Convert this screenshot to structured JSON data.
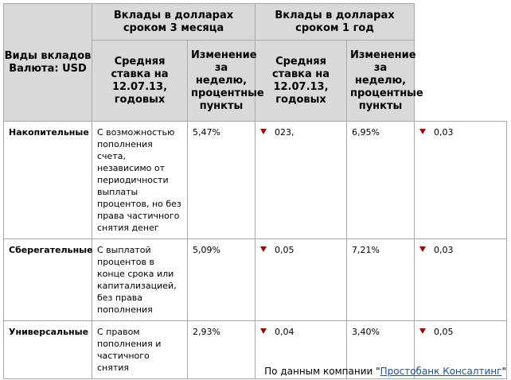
{
  "table": {
    "header": {
      "row_label": [
        "Виды вкладов",
        "Валюта: USD"
      ],
      "groups": [
        "Вклады в долларах сроком 3 месяца",
        "Вклады в долларах сроком 1 год"
      ],
      "subcolumns": [
        [
          "Средняя ставка на 12.07.13, годовых",
          "Изменение за неделю, процентные пункты"
        ],
        [
          "Средняя ставка на 12.07.13, годовых",
          "Изменение за неделю, процентные пункты"
        ]
      ]
    },
    "rows": [
      [
        "Накопительные",
        "С возможностью пополнения счета, независимо от периодичности выплаты процентов, но без права частичного снятия денег",
        "5,47%",
        "023,",
        "6,95%",
        "0,03"
      ],
      [
        "Сберегательные",
        "С выплатой процентов в конце срока или капитализацией, без права пополнения",
        "5,09%",
        "0,05",
        "7,21%",
        "0,03"
      ],
      [
        "Универсальные",
        "С правом пополнения и частичного снятия",
        "2,93%",
        "0,04",
        "3,40%",
        "0,05"
      ]
    ]
  },
  "footer": {
    "prefix": "По данным компании \"",
    "link": "Простобанк Консалтинг",
    "suffix": "\""
  }
}
